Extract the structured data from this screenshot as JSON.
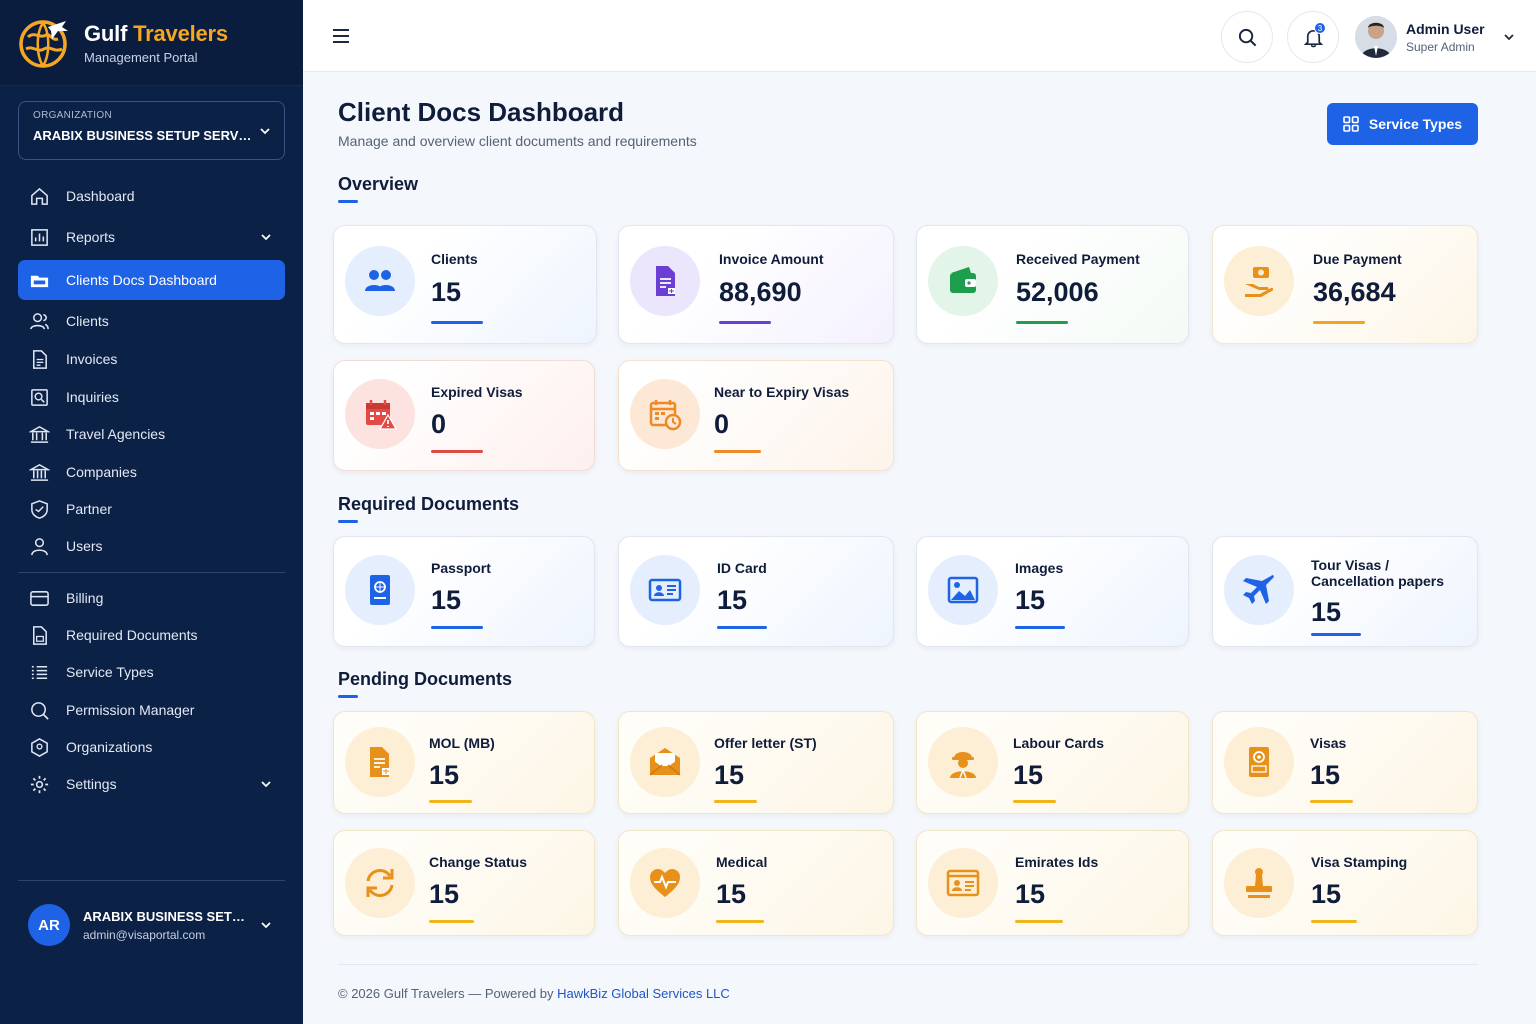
{
  "brand": {
    "name_part1": "Gulf ",
    "name_part2": "Travelers",
    "subtitle": "Management Portal"
  },
  "organization": {
    "caption": "ORGANIZATION",
    "value": "ARABIX BUSINESS SETUP SERVICES"
  },
  "sidebar": {
    "items": [
      {
        "label": "Dashboard",
        "icon": "home-icon"
      },
      {
        "label": "Reports",
        "icon": "reports-icon",
        "expandable": true
      },
      {
        "label": "Clients Docs Dashboard",
        "icon": "folder-icon",
        "active": true
      },
      {
        "label": "Clients",
        "icon": "users-icon"
      },
      {
        "label": "Invoices",
        "icon": "invoice-icon"
      },
      {
        "label": "Inquiries",
        "icon": "inquiry-icon"
      },
      {
        "label": "Travel Agencies",
        "icon": "bank-icon"
      },
      {
        "label": "Companies",
        "icon": "building-icon"
      },
      {
        "label": "Partner",
        "icon": "handshake-icon"
      },
      {
        "label": "Users",
        "icon": "user-icon"
      },
      {
        "label": "Billing",
        "icon": "card-icon"
      },
      {
        "label": "Required Documents",
        "icon": "document-icon"
      },
      {
        "label": "Service Types",
        "icon": "list-icon"
      },
      {
        "label": "Permission Manager",
        "icon": "search-icon"
      },
      {
        "label": "Organizations",
        "icon": "hexagon-icon"
      },
      {
        "label": "Settings",
        "icon": "gear-icon",
        "expandable": true
      }
    ]
  },
  "sidebar_user": {
    "initials": "AR",
    "name": "ARABIX BUSINESS SETUP SERVICES",
    "email": "admin@visaportal.com"
  },
  "topbar": {
    "notification_count": "3",
    "user_name": "Admin User",
    "user_role": "Super Admin"
  },
  "page": {
    "title": "Client Docs Dashboard",
    "subtitle": "Manage and overview client documents and requirements",
    "action_button": "Service Types"
  },
  "sections": {
    "overview": "Overview",
    "required": "Required Documents",
    "pending": "Pending Documents"
  },
  "overview_cards": [
    {
      "label": "Clients",
      "value": "15",
      "icon": "clients-icon",
      "color": "#1e63e6"
    },
    {
      "label": "Invoice Amount",
      "value": "88,690",
      "icon": "invoice-icon",
      "color": "#6b3fd6"
    },
    {
      "label": "Received Payment",
      "value": "52,006",
      "icon": "wallet-icon",
      "color": "#1f9d4f"
    },
    {
      "label": "Due Payment",
      "value": "36,684",
      "icon": "money-hand-icon",
      "color": "#f0a51c"
    },
    {
      "label": "Expired Visas",
      "value": "0",
      "icon": "calendar-alert-icon",
      "color": "#e24b45"
    },
    {
      "label": "Near to Expiry Visas",
      "value": "0",
      "icon": "calendar-clock-icon",
      "color": "#ee8a26"
    }
  ],
  "required_cards": [
    {
      "label": "Passport",
      "value": "15",
      "icon": "passport-icon"
    },
    {
      "label": "ID Card",
      "value": "15",
      "icon": "id-card-icon"
    },
    {
      "label": "Images",
      "value": "15",
      "icon": "image-icon"
    },
    {
      "label_line1": "Tour Visas /",
      "label_line2": "Cancellation papers",
      "value": "15",
      "icon": "plane-icon"
    }
  ],
  "pending_cards": [
    {
      "label": "MOL (MB)",
      "value": "15",
      "icon": "mol-document-icon"
    },
    {
      "label": "Offer letter (ST)",
      "value": "15",
      "icon": "envelope-icon"
    },
    {
      "label": "Labour Cards",
      "value": "15",
      "icon": "worker-icon"
    },
    {
      "label": "Visas",
      "value": "15",
      "icon": "visa-icon"
    },
    {
      "label": "Change Status",
      "value": "15",
      "icon": "refresh-icon"
    },
    {
      "label": "Medical",
      "value": "15",
      "icon": "medical-icon"
    },
    {
      "label": "Emirates Ids",
      "value": "15",
      "icon": "emirates-id-icon"
    },
    {
      "label": "Visa Stamping",
      "value": "15",
      "icon": "stamp-icon"
    }
  ],
  "footer": {
    "text": "© 2026 Gulf Travelers — Powered by ",
    "link": "HawkBiz Global Services LLC"
  }
}
